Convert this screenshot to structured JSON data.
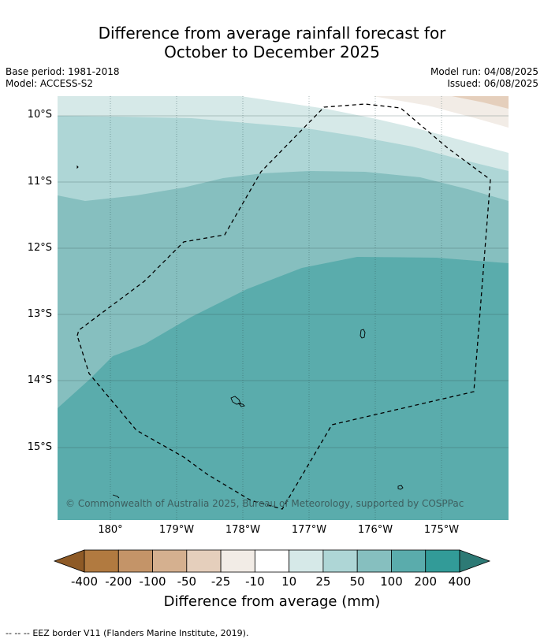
{
  "title": {
    "line1": "Difference from average rainfall forecast for",
    "line2": "October to December 2025"
  },
  "meta": {
    "base_period": "Base period: 1981-2018",
    "model": "Model: ACCESS-S2",
    "model_run": "Model run: 04/08/2025",
    "issued": "Issued: 06/08/2025"
  },
  "map": {
    "lat_labels": [
      "10°S",
      "11°S",
      "12°S",
      "13°S",
      "14°S",
      "15°S"
    ],
    "lon_labels": [
      "180°",
      "179°W",
      "178°W",
      "177°W",
      "176°W",
      "175°W"
    ],
    "copyright": "© Commonwealth of Australia 2025, Bureau of Meteorology, supported by COSPPac"
  },
  "colorbar": {
    "title": "Difference from average (mm)",
    "tick_labels": [
      "-400",
      "-200",
      "-100",
      "-50",
      "-25",
      "-10",
      "10",
      "25",
      "50",
      "100",
      "200",
      "400"
    ],
    "colors": {
      "below_min": "#8e5a26",
      "bins": [
        "#b17a40",
        "#c49468",
        "#d5b08f",
        "#e5cfbc",
        "#f2ece6",
        "#ffffff",
        "#d6e9e8",
        "#aed6d6",
        "#86bfbf",
        "#5aacac",
        "#329b98"
      ],
      "above_max": "#2d7a75"
    }
  },
  "footer": {
    "legend_symbol": "--  --  --",
    "legend_text": "EEZ border V11 (Flanders Marine Institute, 2019)."
  }
}
